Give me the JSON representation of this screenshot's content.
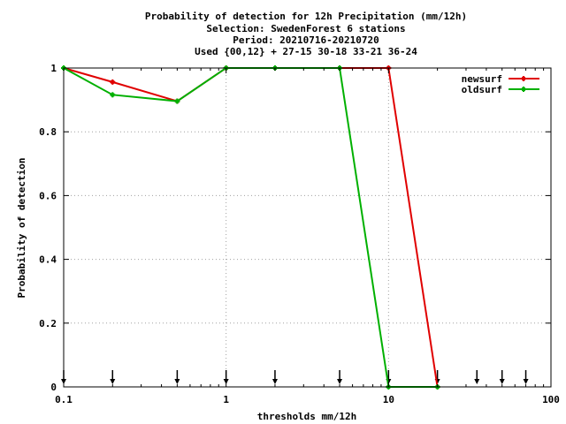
{
  "chart_data": {
    "type": "line",
    "title_lines": [
      "Probability of detection  for 12h Precipitation (mm/12h)",
      "Selection: SwedenForest      6 stations",
      "Period: 20210716-20210720",
      "Used {00,12} + 27-15 30-18 33-21 36-24"
    ],
    "xlabel": "thresholds mm/12h",
    "ylabel": "Probability of detection",
    "x_scale": "log",
    "xlim": [
      0.1,
      100
    ],
    "ylim": [
      0,
      1
    ],
    "x_ticks": [
      {
        "value": 0.1,
        "label": "0.1"
      },
      {
        "value": 1,
        "label": "1"
      },
      {
        "value": 10,
        "label": "10"
      },
      {
        "value": 100,
        "label": "100"
      }
    ],
    "y_ticks": [
      {
        "value": 0,
        "label": "0"
      },
      {
        "value": 0.2,
        "label": "0.2"
      },
      {
        "value": 0.4,
        "label": "0.4"
      },
      {
        "value": 0.6,
        "label": "0.6"
      },
      {
        "value": 0.8,
        "label": "0.8"
      },
      {
        "value": 1,
        "label": "1"
      }
    ],
    "grid": true,
    "legend_position": "top-right",
    "series": [
      {
        "name": "newsurf",
        "color": "#e00000",
        "x": [
          0.1,
          0.2,
          0.5,
          1,
          2,
          5,
          10,
          20
        ],
        "y": [
          1.0,
          0.956,
          0.896,
          1.0,
          1.0,
          1.0,
          1.0,
          0.0
        ]
      },
      {
        "name": "oldsurf",
        "color": "#00b000",
        "x": [
          0.1,
          0.2,
          0.5,
          1,
          2,
          5,
          10,
          20
        ],
        "y": [
          1.0,
          0.916,
          0.896,
          1.0,
          1.0,
          1.0,
          0.0,
          0.0
        ]
      }
    ],
    "threshold_arrows_x": [
      0.1,
      0.2,
      0.5,
      1,
      2,
      5,
      10,
      20,
      35,
      50,
      70
    ]
  }
}
